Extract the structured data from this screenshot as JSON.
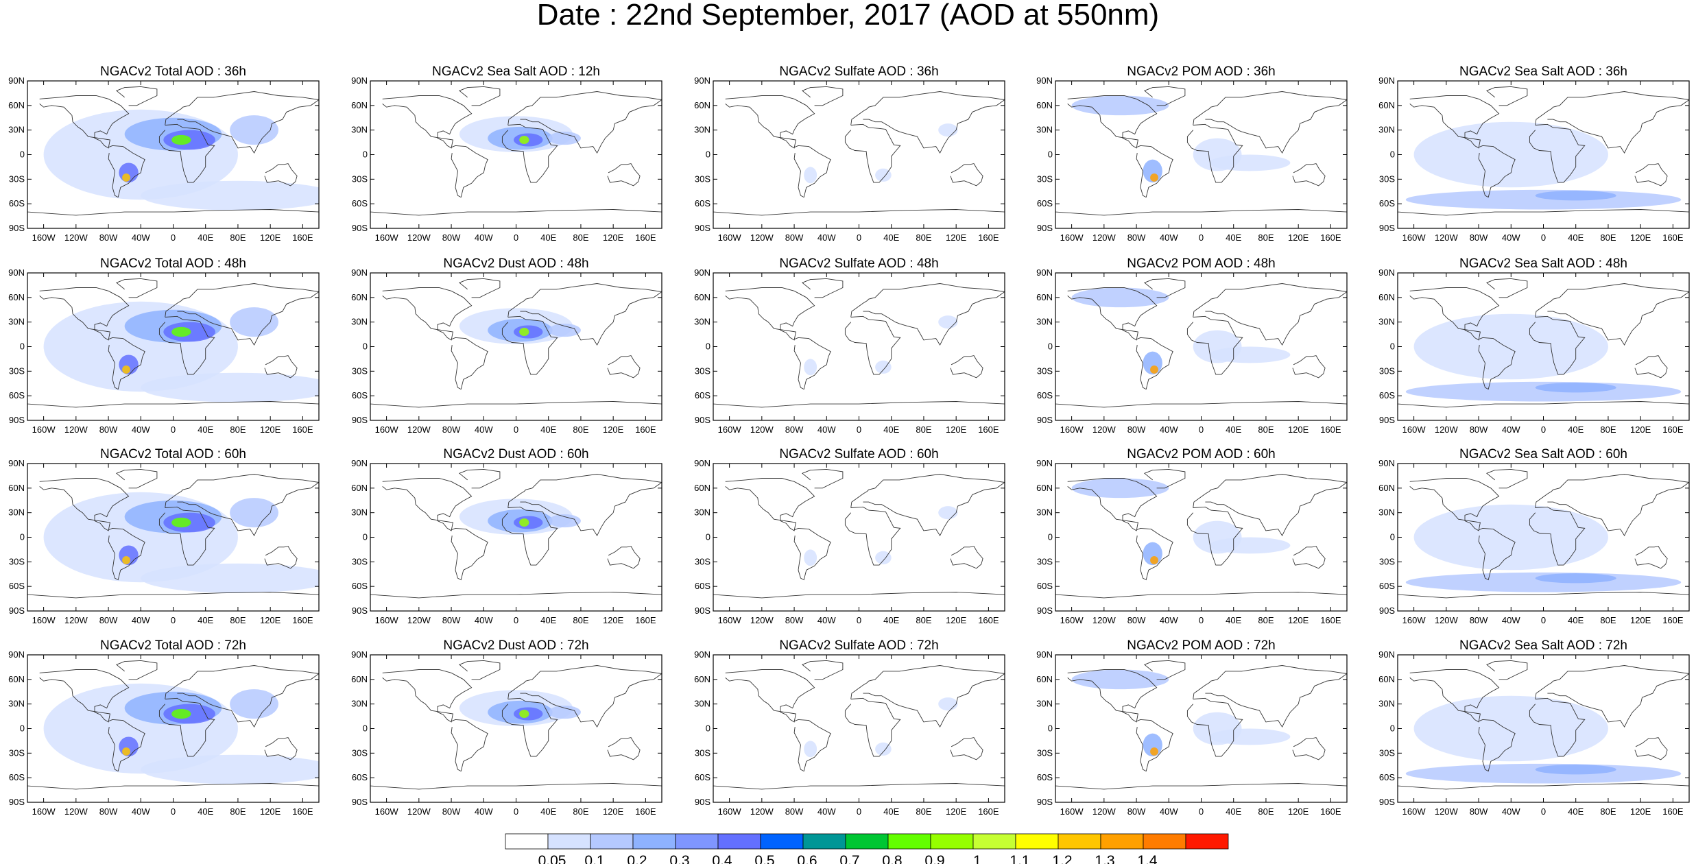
{
  "title": "Date : 22nd September, 2017 (AOD at 550nm)",
  "panels": [
    [
      "NGACv2 Total AOD : 36h",
      "NGACv2 Sea Salt  AOD : 12h",
      "NGACv2 Sulfate AOD : 36h",
      "NGACv2 POM AOD : 36h",
      "NGACv2 Sea Salt AOD : 36h"
    ],
    [
      "NGACv2 Total AOD : 48h",
      "NGACv2 Dust AOD : 48h",
      "NGACv2 Sulfate AOD : 48h",
      "NGACv2 POM AOD : 48h",
      "NGACv2 Sea Salt AOD : 48h"
    ],
    [
      "NGACv2 Total AOD : 60h",
      "NGACv2 Dust AOD : 60h",
      "NGACv2 Sulfate AOD : 60h",
      "NGACv2 POM AOD : 60h",
      "NGACv2 Sea Salt AOD : 60h"
    ],
    [
      "NGACv2 Total AOD : 72h",
      "NGACv2 Dust AOD : 72h",
      "NGACv2 Sulfate AOD : 72h",
      "NGACv2 POM AOD : 72h",
      "NGACv2 Sea Salt  AOD : 72h"
    ]
  ],
  "lat_ticks": [
    "90N",
    "60N",
    "30N",
    "0",
    "30S",
    "60S",
    "90S"
  ],
  "lon_ticks": [
    "160W",
    "120W",
    "80W",
    "40W",
    "0",
    "40E",
    "80E",
    "120E",
    "160E"
  ],
  "colorbar": {
    "labels": [
      "0.05",
      "0.1",
      "0.2",
      "0.3",
      "0.4",
      "0.5",
      "0.6",
      "0.7",
      "0.8",
      "0.9",
      "1",
      "1.1",
      "1.2",
      "1.3",
      "1.4"
    ],
    "colors": [
      "#ffffff",
      "#d6e2ff",
      "#b5c9ff",
      "#8eb2ff",
      "#7f96ff",
      "#6370ff",
      "#0063ff",
      "#009696",
      "#00c633",
      "#63ff00",
      "#96ff00",
      "#c6ff33",
      "#ffff00",
      "#ffc600",
      "#ffa000",
      "#ff7c00",
      "#ff1900"
    ]
  }
}
